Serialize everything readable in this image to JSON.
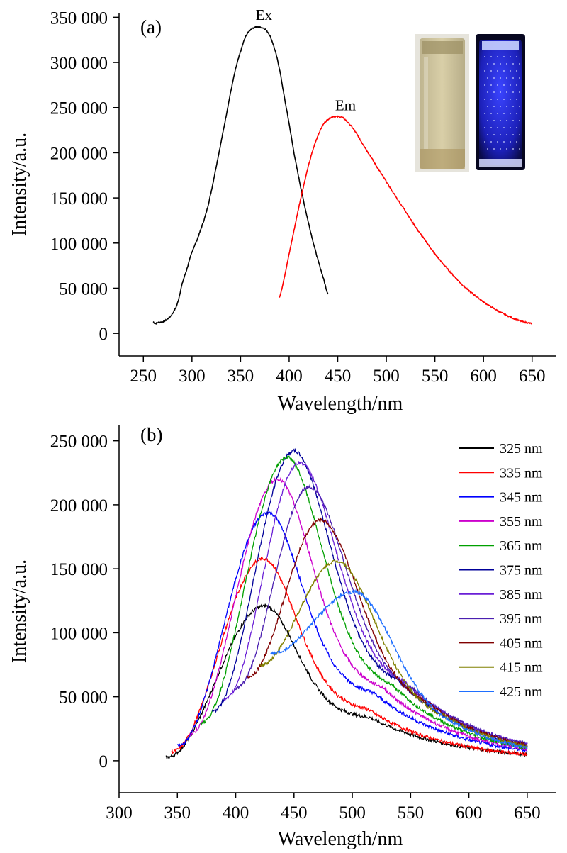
{
  "chart_data": [
    {
      "panel_label": "(a)",
      "type": "line",
      "xlabel": "Wavelength/nm",
      "ylabel": "Intensity/a.u.",
      "xlim": [
        225,
        675
      ],
      "ylim": [
        -25000,
        355000
      ],
      "xticks": [
        250,
        300,
        350,
        400,
        450,
        500,
        550,
        600,
        650
      ],
      "xtick_labels": [
        "250",
        "300",
        "350",
        "400",
        "450",
        "500",
        "550",
        "600",
        "650"
      ],
      "yticks": [
        0,
        50000,
        100000,
        150000,
        200000,
        250000,
        300000,
        350000
      ],
      "ytick_labels": [
        "0",
        "50 000",
        "100 000",
        "150 000",
        "200 000",
        "250 000",
        "300 000",
        "350 000"
      ],
      "series": [
        {
          "name": "Ex",
          "color": "#000000",
          "x": [
            260,
            262,
            265,
            270,
            275,
            280,
            285,
            290,
            295,
            300,
            305,
            310,
            315,
            320,
            325,
            330,
            335,
            340,
            345,
            350,
            355,
            360,
            365,
            370,
            375,
            380,
            385,
            390,
            395,
            400,
            405,
            410,
            415,
            420,
            425,
            430,
            435,
            440
          ],
          "y": [
            13000,
            11000,
            12000,
            13000,
            16000,
            22000,
            33000,
            55000,
            72000,
            90000,
            103000,
            118000,
            135000,
            158000,
            185000,
            212000,
            240000,
            268000,
            293000,
            312000,
            328000,
            336000,
            339000,
            339000,
            337000,
            330000,
            315000,
            293000,
            262000,
            232000,
            200000,
            172000,
            146000,
            122000,
            100000,
            80000,
            62000,
            44000
          ]
        },
        {
          "name": "Em",
          "color": "#ff0000",
          "x": [
            390,
            395,
            400,
            405,
            410,
            415,
            420,
            425,
            430,
            435,
            440,
            445,
            450,
            455,
            460,
            465,
            470,
            475,
            480,
            490,
            500,
            510,
            520,
            530,
            540,
            550,
            560,
            570,
            580,
            590,
            600,
            610,
            620,
            630,
            640,
            650
          ],
          "y": [
            40000,
            62000,
            88000,
            114000,
            140000,
            164000,
            186000,
            205000,
            220000,
            231000,
            237000,
            240000,
            240000,
            239000,
            234000,
            228000,
            220000,
            211000,
            202000,
            185000,
            168000,
            151000,
            135000,
            118000,
            103000,
            88000,
            75000,
            63000,
            52000,
            43000,
            35000,
            28000,
            22000,
            17000,
            13000,
            11000
          ]
        }
      ],
      "annotations": [
        {
          "text": "Ex",
          "x": 374,
          "y": 347000
        },
        {
          "text": "Em",
          "x": 458,
          "y": 247000
        }
      ],
      "inset": {
        "description_visible": "two cuvette photographs: daylight (pale yellow) and UV (blue fluorescence)",
        "left_color": "#cfc39b",
        "right_color": "#2a2fd8"
      },
      "grid": false,
      "legend": "none"
    },
    {
      "panel_label": "(b)",
      "type": "line",
      "xlabel": "Wavelength/nm",
      "ylabel": "Intensity/a.u.",
      "xlim": [
        300,
        675
      ],
      "ylim": [
        -25000,
        262000
      ],
      "xticks": [
        300,
        350,
        400,
        450,
        500,
        550,
        600,
        650
      ],
      "xtick_labels": [
        "300",
        "350",
        "400",
        "450",
        "500",
        "550",
        "600",
        "650"
      ],
      "yticks": [
        0,
        50000,
        100000,
        150000,
        200000,
        250000
      ],
      "ytick_labels": [
        "0",
        "50 000",
        "100 000",
        "150 000",
        "200 000",
        "250 000"
      ],
      "grid": false,
      "legend": "top-right",
      "series": [
        {
          "name": "325 nm",
          "color": "#000000",
          "start": 340,
          "peak_x": 425,
          "peak_y": 121000,
          "end_y": 5000
        },
        {
          "name": "335 nm",
          "color": "#ff0000",
          "start": 345,
          "peak_x": 424,
          "peak_y": 158000,
          "end_y": 5000
        },
        {
          "name": "345 nm",
          "color": "#0000ff",
          "start": 350,
          "peak_x": 428,
          "peak_y": 194000,
          "end_y": 8000
        },
        {
          "name": "355 nm",
          "color": "#cc00cc",
          "start": 360,
          "peak_x": 436,
          "peak_y": 220000,
          "end_y": 9000
        },
        {
          "name": "365 nm",
          "color": "#00a000",
          "start": 370,
          "peak_x": 444,
          "peak_y": 237000,
          "end_y": 10000
        },
        {
          "name": "375 nm",
          "color": "#000099",
          "start": 380,
          "peak_x": 450,
          "peak_y": 242000,
          "end_y": 12000
        },
        {
          "name": "385 nm",
          "color": "#6a1fd6",
          "start": 390,
          "peak_x": 455,
          "peak_y": 233000,
          "end_y": 13000
        },
        {
          "name": "395 nm",
          "color": "#4b1fb0",
          "start": 400,
          "peak_x": 463,
          "peak_y": 214000,
          "end_y": 13000
        },
        {
          "name": "405 nm",
          "color": "#800000",
          "start": 410,
          "peak_x": 473,
          "peak_y": 188000,
          "end_y": 12000
        },
        {
          "name": "415 nm",
          "color": "#808000",
          "start": 420,
          "peak_x": 487,
          "peak_y": 156000,
          "end_y": 11000
        },
        {
          "name": "425 nm",
          "color": "#1f6fff",
          "start": 430,
          "peak_x": 502,
          "peak_y": 132000,
          "end_y": 10000
        }
      ]
    }
  ]
}
